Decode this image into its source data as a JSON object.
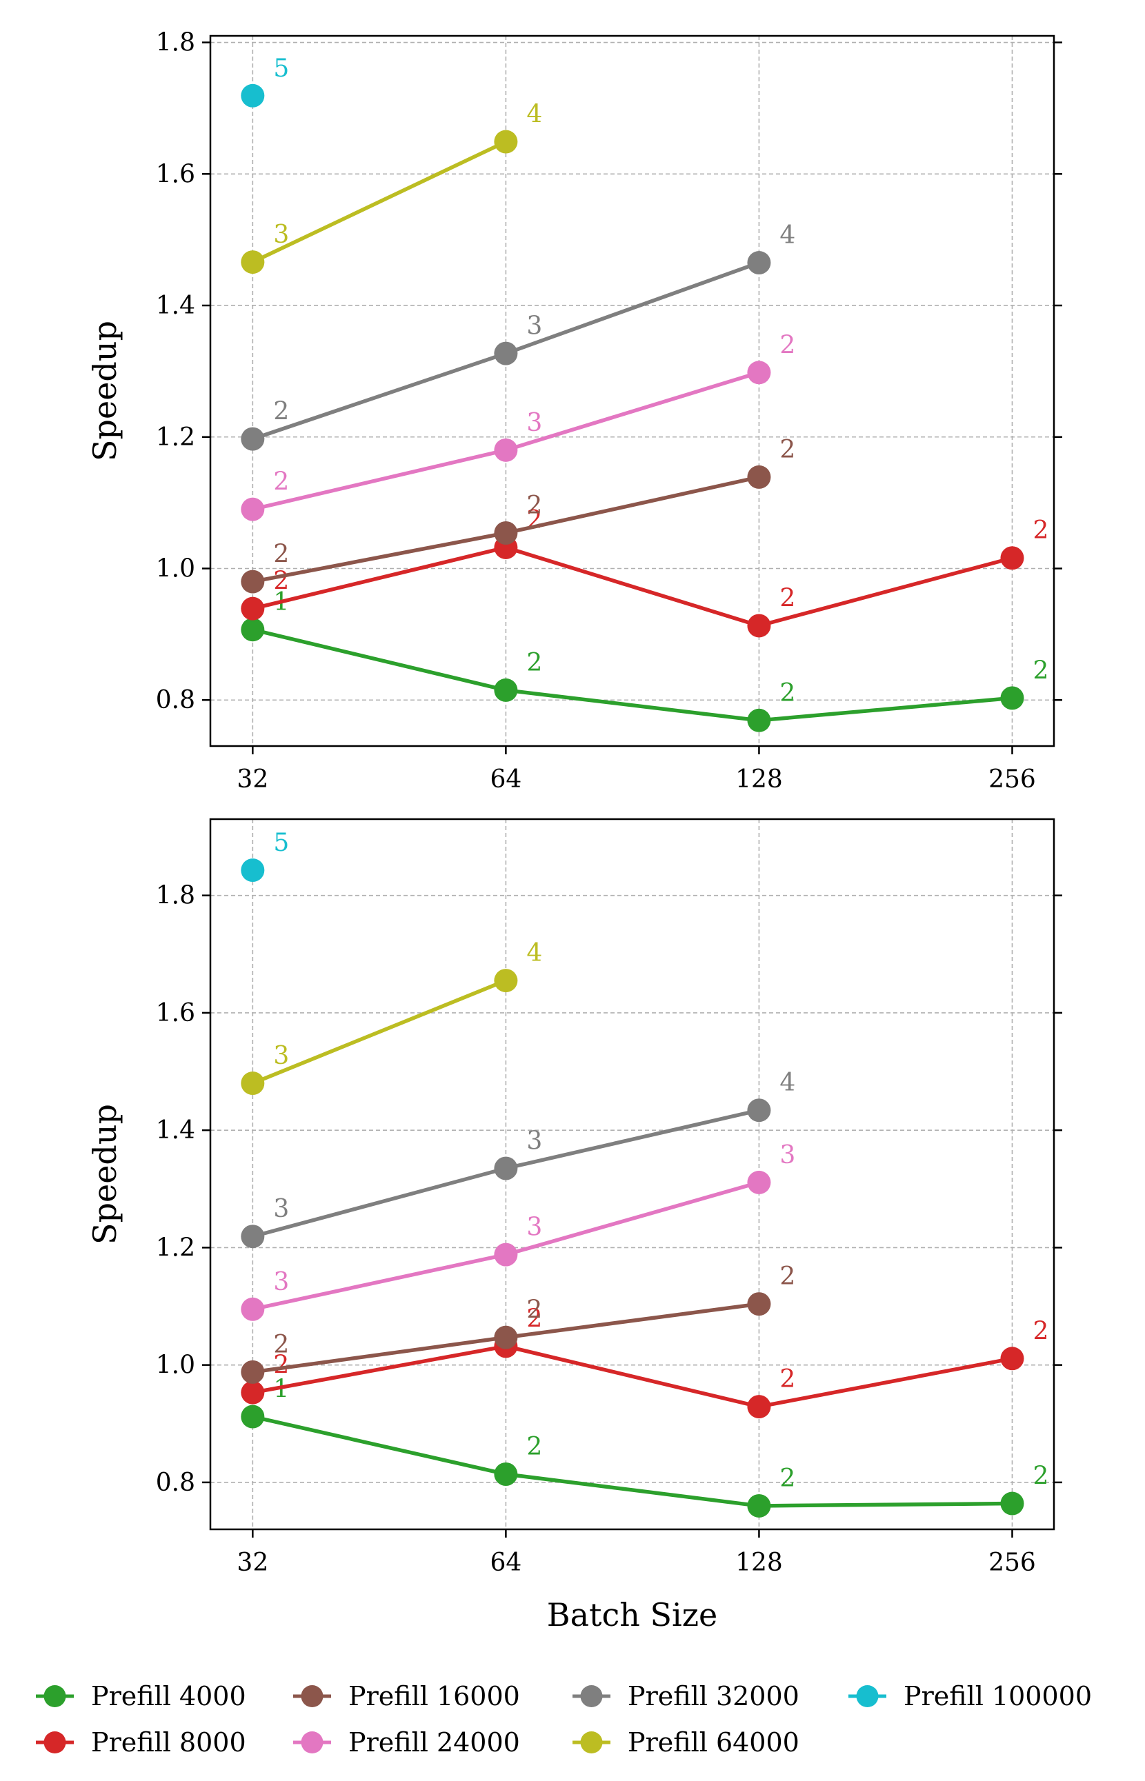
{
  "chart_data": [
    {
      "type": "line",
      "title": "",
      "xlabel": "",
      "ylabel": "Speedup",
      "xscale": "log2",
      "x_ticks": [
        32,
        64,
        128,
        256
      ],
      "x_tick_labels": [
        "32",
        "64",
        "128",
        "256"
      ],
      "xlim": [
        28.5,
        287
      ],
      "ylim": [
        0.73,
        1.81
      ],
      "y_ticks": [
        0.8,
        1.0,
        1.2,
        1.4,
        1.6,
        1.8
      ],
      "y_tick_labels": [
        "0.8",
        "1.0",
        "1.2",
        "1.4",
        "1.6",
        "1.8"
      ],
      "grid": true,
      "series": [
        {
          "name": "Prefill 4000",
          "color": "#2ca02c",
          "x": [
            32,
            64,
            128,
            256
          ],
          "y": [
            0.907,
            0.815,
            0.769,
            0.803
          ],
          "labels": [
            "1",
            "2",
            "2",
            "2"
          ]
        },
        {
          "name": "Prefill 8000",
          "color": "#d62728",
          "x": [
            32,
            64,
            128,
            256
          ],
          "y": [
            0.939,
            1.032,
            0.913,
            1.016
          ],
          "labels": [
            "2",
            "2",
            "2",
            "2"
          ]
        },
        {
          "name": "Prefill 16000",
          "color": "#8c564b",
          "x": [
            32,
            64,
            128
          ],
          "y": [
            0.98,
            1.054,
            1.139
          ],
          "labels": [
            "2",
            "2",
            "2"
          ]
        },
        {
          "name": "Prefill 24000",
          "color": "#e377c2",
          "x": [
            32,
            64,
            128
          ],
          "y": [
            1.09,
            1.18,
            1.298
          ],
          "labels": [
            "2",
            "3",
            "2"
          ]
        },
        {
          "name": "Prefill 32000",
          "color": "#7f7f7f",
          "x": [
            32,
            64,
            128
          ],
          "y": [
            1.197,
            1.327,
            1.465
          ],
          "labels": [
            "2",
            "3",
            "4"
          ]
        },
        {
          "name": "Prefill 64000",
          "color": "#bcbd22",
          "x": [
            32,
            64
          ],
          "y": [
            1.466,
            1.649
          ],
          "labels": [
            "3",
            "4"
          ]
        },
        {
          "name": "Prefill 100000",
          "color": "#17becf",
          "x": [
            32
          ],
          "y": [
            1.719
          ],
          "labels": [
            "5"
          ]
        }
      ]
    },
    {
      "type": "line",
      "title": "",
      "xlabel": "Batch Size",
      "ylabel": "Speedup",
      "xscale": "log2",
      "x_ticks": [
        32,
        64,
        128,
        256
      ],
      "x_tick_labels": [
        "32",
        "64",
        "128",
        "256"
      ],
      "xlim": [
        28.5,
        287
      ],
      "ylim": [
        0.72,
        1.93
      ],
      "y_ticks": [
        0.8,
        1.0,
        1.2,
        1.4,
        1.6,
        1.8
      ],
      "y_tick_labels": [
        "0.8",
        "1.0",
        "1.2",
        "1.4",
        "1.6",
        "1.8"
      ],
      "grid": true,
      "series": [
        {
          "name": "Prefill 4000",
          "color": "#2ca02c",
          "x": [
            32,
            64,
            128,
            256
          ],
          "y": [
            0.912,
            0.814,
            0.76,
            0.764
          ],
          "labels": [
            "1",
            "2",
            "2",
            "2"
          ]
        },
        {
          "name": "Prefill 8000",
          "color": "#d62728",
          "x": [
            32,
            64,
            128,
            256
          ],
          "y": [
            0.953,
            1.032,
            0.929,
            1.011
          ],
          "labels": [
            "2",
            "2",
            "2",
            "2"
          ]
        },
        {
          "name": "Prefill 16000",
          "color": "#8c564b",
          "x": [
            32,
            64,
            128
          ],
          "y": [
            0.988,
            1.047,
            1.104
          ],
          "labels": [
            "2",
            "2",
            "2"
          ]
        },
        {
          "name": "Prefill 24000",
          "color": "#e377c2",
          "x": [
            32,
            64,
            128
          ],
          "y": [
            1.095,
            1.188,
            1.311
          ],
          "labels": [
            "3",
            "3",
            "3"
          ]
        },
        {
          "name": "Prefill 32000",
          "color": "#7f7f7f",
          "x": [
            32,
            64,
            128
          ],
          "y": [
            1.219,
            1.335,
            1.434
          ],
          "labels": [
            "3",
            "3",
            "4"
          ]
        },
        {
          "name": "Prefill 64000",
          "color": "#bcbd22",
          "x": [
            32,
            64
          ],
          "y": [
            1.48,
            1.655
          ],
          "labels": [
            "3",
            "4"
          ]
        },
        {
          "name": "Prefill 100000",
          "color": "#17becf",
          "x": [
            32
          ],
          "y": [
            1.843
          ],
          "labels": [
            "5"
          ]
        }
      ]
    }
  ],
  "legend": {
    "position": "bottom",
    "entries": [
      {
        "label": "Prefill 4000",
        "color": "#2ca02c"
      },
      {
        "label": "Prefill 8000",
        "color": "#d62728"
      },
      {
        "label": "Prefill 16000",
        "color": "#8c564b"
      },
      {
        "label": "Prefill 24000",
        "color": "#e377c2"
      },
      {
        "label": "Prefill 32000",
        "color": "#7f7f7f"
      },
      {
        "label": "Prefill 64000",
        "color": "#bcbd22"
      },
      {
        "label": "Prefill 100000",
        "color": "#17becf"
      }
    ]
  }
}
